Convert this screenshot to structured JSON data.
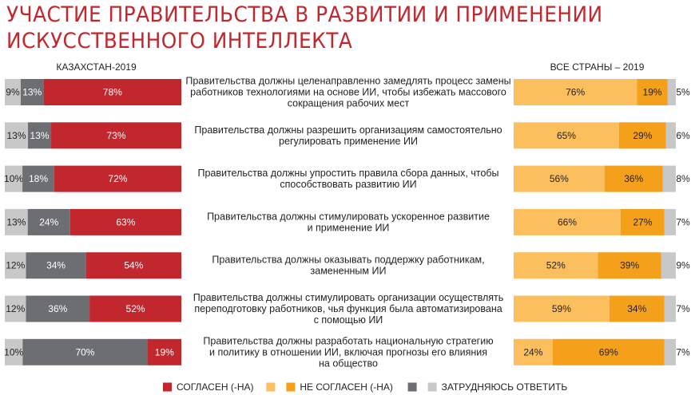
{
  "title": {
    "line1": "УЧАСТИЕ ПРАВИТЕЛЬСТВА В РАЗВИТИИ И ПРИМЕНЕНИИ",
    "line2": "ИСКУССТВЕННОГО ИНТЕЛЛЕКТА"
  },
  "colors": {
    "agree_kz": "#c1272d",
    "disagree_kz": "#6d6e71",
    "neutral": "#c8c8c8",
    "agree_all": "#fbbf5e",
    "disagree_all": "#f4a01a",
    "text_dark": "#231f20"
  },
  "chart_data": {
    "type": "bar",
    "orientation": "horizontal",
    "stacked": true,
    "left_panel": {
      "title": "КАЗАХСТАН-2019",
      "series": [
        {
          "name": "ЗАТРУДНЯЮСЬ ОТВЕТИТЬ",
          "values": [
            9,
            13,
            10,
            13,
            12,
            12,
            10
          ]
        },
        {
          "name": "НЕ СОГЛАСЕН (-НА)",
          "values": [
            13,
            13,
            18,
            24,
            34,
            36,
            70
          ]
        },
        {
          "name": "СОГЛАСЕН (-НА)",
          "values": [
            78,
            73,
            72,
            63,
            54,
            52,
            19
          ]
        }
      ]
    },
    "right_panel": {
      "title": "ВСЕ СТРАНЫ – 2019",
      "series": [
        {
          "name": "СОГЛАСЕН (-НА)",
          "values": [
            76,
            65,
            56,
            66,
            52,
            59,
            24
          ]
        },
        {
          "name": "НЕ СОГЛАСЕН (-НА)",
          "values": [
            19,
            29,
            36,
            27,
            39,
            34,
            69
          ]
        },
        {
          "name": "ЗАТРУДНЯЮСЬ ОТВЕТИТЬ",
          "values": [
            5,
            6,
            8,
            7,
            9,
            7,
            7
          ]
        }
      ]
    },
    "categories": [
      [
        "Правительства должны целенаправленно замедлять процесс замены",
        "работников технологиями на основе ИИ, чтобы избежать массового",
        "сокращения рабочих мест"
      ],
      [
        "Правительства должны разрешить организациям самостоятельно",
        "регулировать применение ИИ"
      ],
      [
        "Правительства должны упростить правила сбора данных, чтобы",
        "способствовать развитию ИИ"
      ],
      [
        "Правительства должны стимулировать ускоренное развитие",
        "и применение ИИ"
      ],
      [
        "Правительства должны оказывать поддержку работникам,",
        "замененным ИИ"
      ],
      [
        "Правительства должны стимулировать организации осуществлять",
        "переподготовку работников, чья функция была автоматизирована",
        "с помощью ИИ"
      ],
      [
        "Правительства должны разработать национальную стратегию",
        "и политику в отношении ИИ, включая прогнозы его влияния",
        "на общество"
      ]
    ],
    "legend": {
      "placement": "bottom",
      "items": [
        {
          "label": "СОГЛАСЕН (-НА)",
          "colors": [
            "#c1272d",
            "#fbbf5e"
          ]
        },
        {
          "label": "НЕ СОГЛАСЕН (-НА)",
          "colors": [
            "#f4a01a",
            "#6d6e71"
          ]
        },
        {
          "label": "ЗАТРУДНЯЮСЬ ОТВЕТИТЬ",
          "colors": [
            "#c8c8c8"
          ]
        }
      ]
    },
    "unit": "%"
  }
}
